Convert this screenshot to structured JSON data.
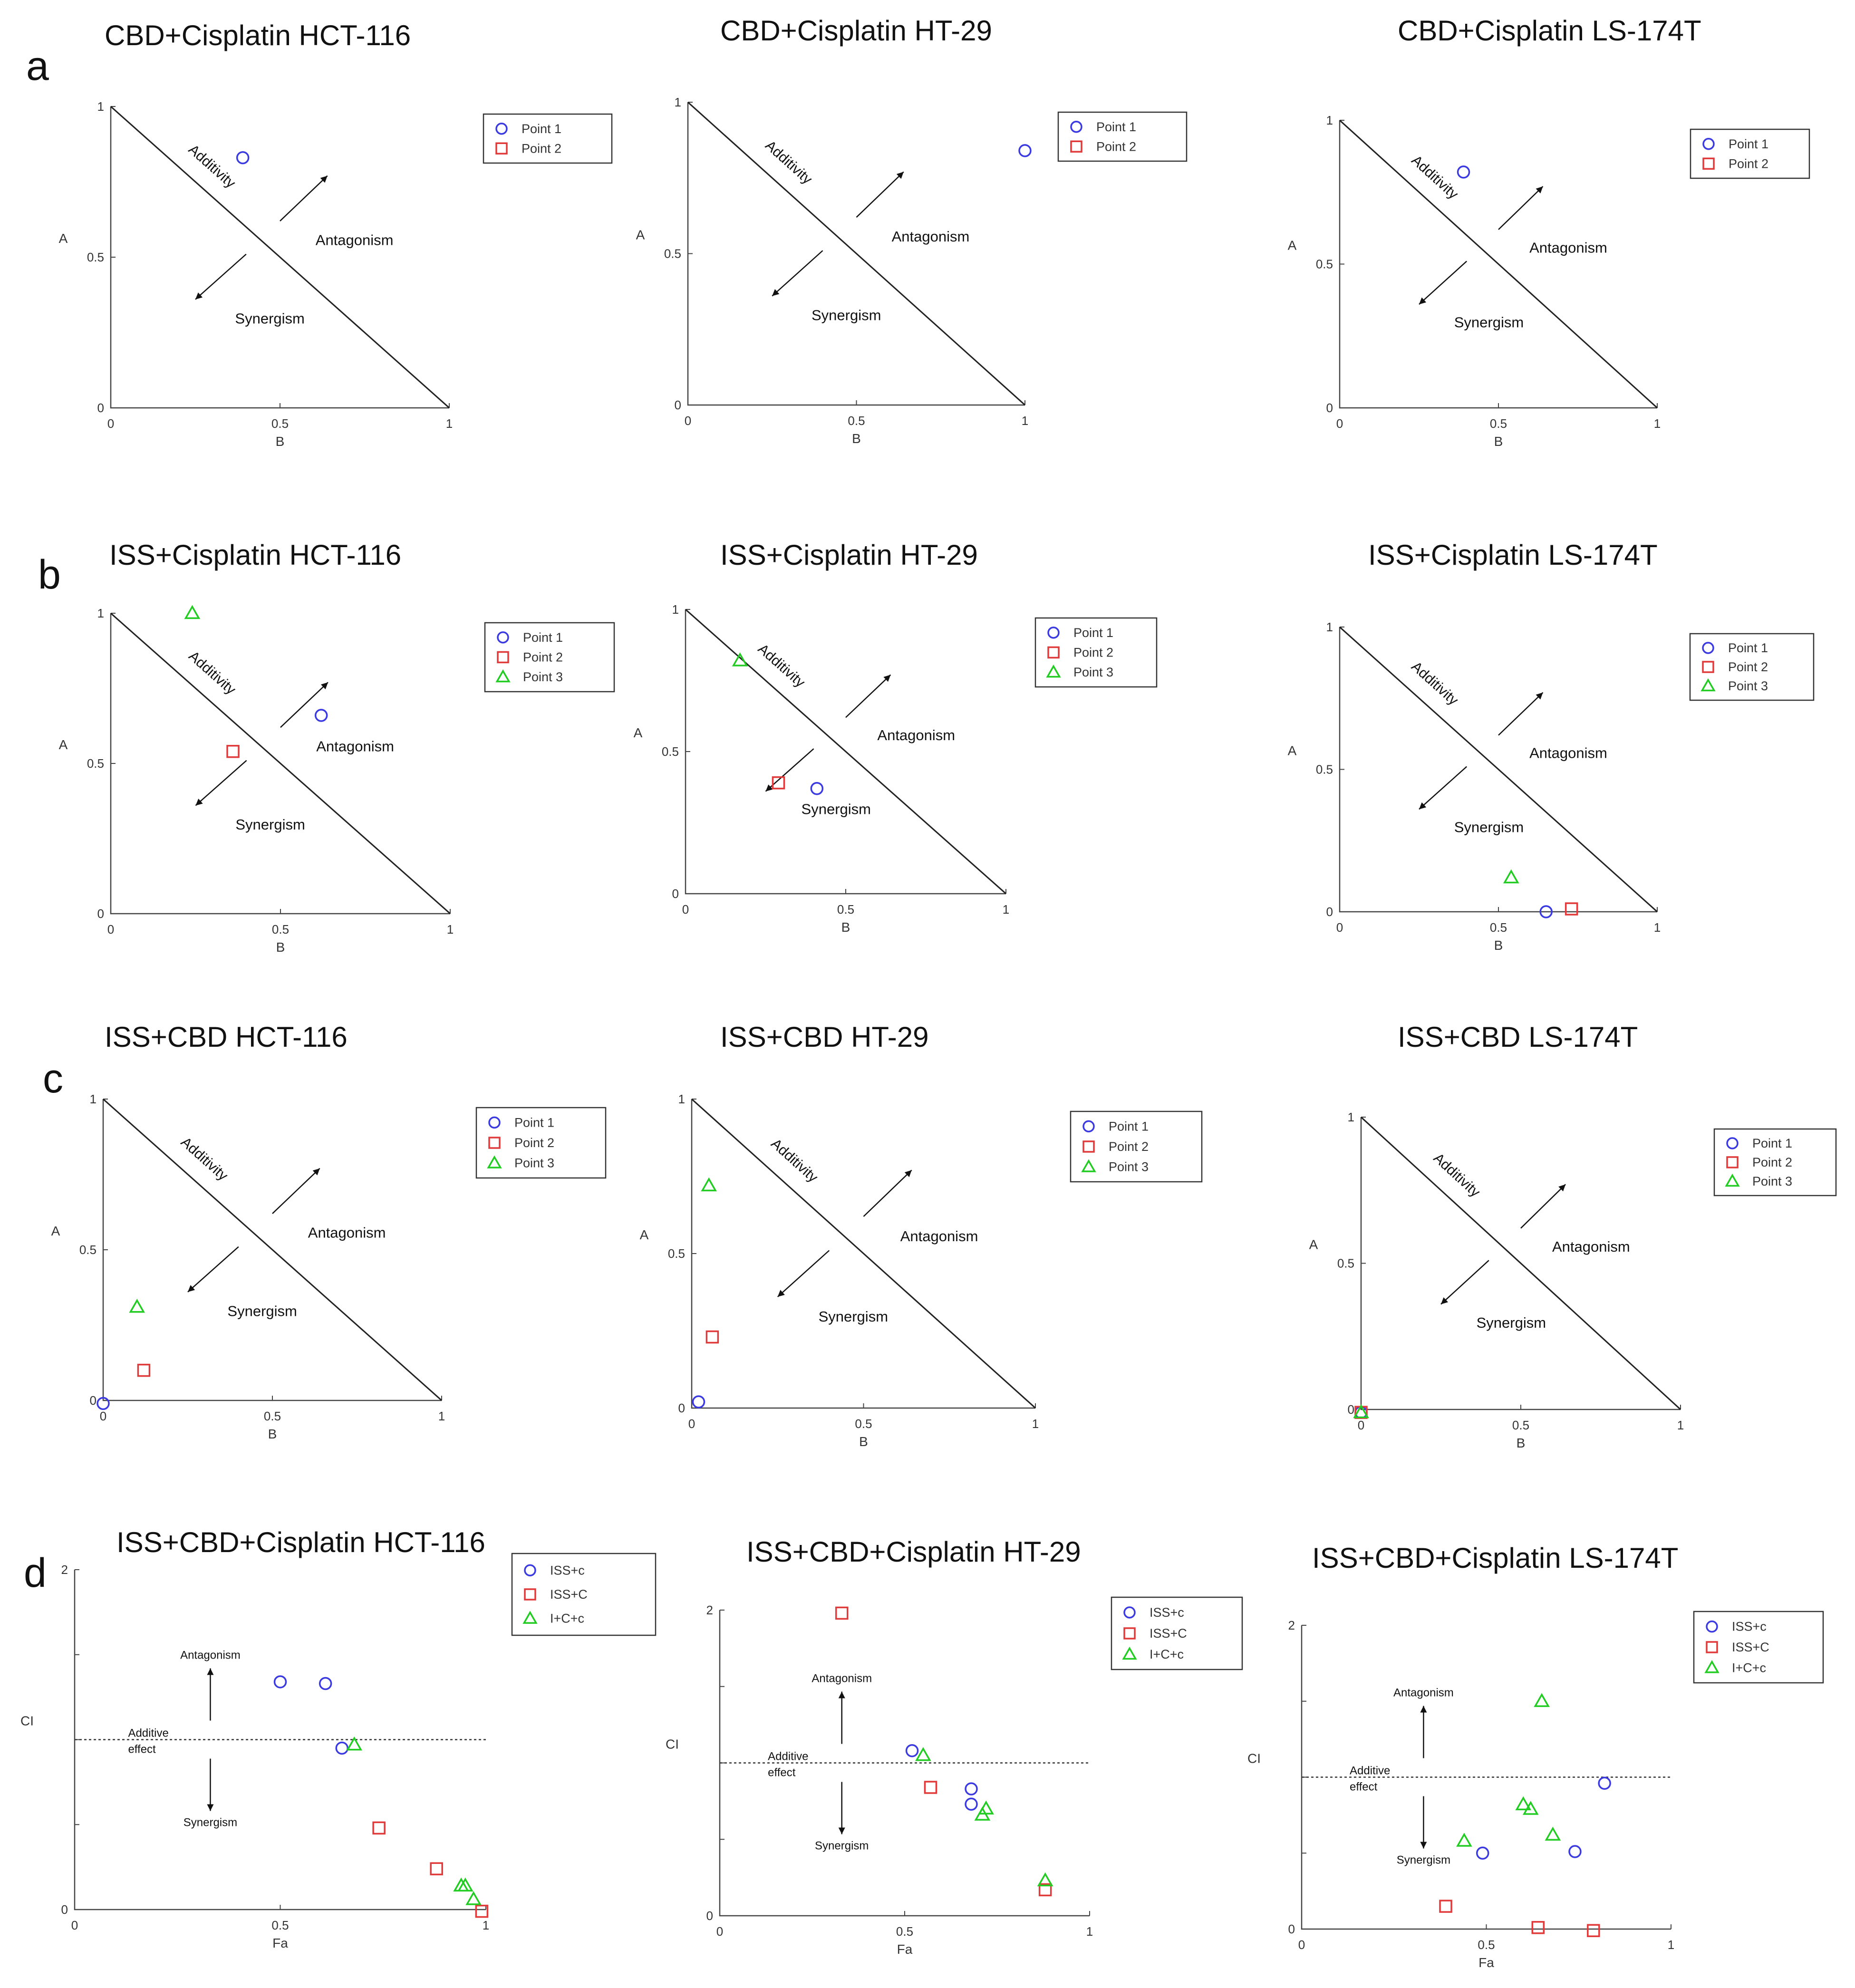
{
  "row_labels": [
    "a",
    "b",
    "c",
    "d"
  ],
  "chart_data": [
    {
      "id": "a1",
      "row": 0,
      "type": "isobologram",
      "title": "CBD+Cisplatin HCT-116",
      "xlabel": "B",
      "ylabel": "A",
      "xlim": [
        0,
        1
      ],
      "ylim": [
        0,
        1
      ],
      "xticks": [
        "0",
        "0.5",
        "1"
      ],
      "yticks": [
        "0",
        "0.5",
        "1"
      ],
      "regions": {
        "line": "Additivity",
        "above": "Antagonism",
        "below": "Synergism"
      },
      "series": [
        {
          "name": "Point 1",
          "marker": "circle",
          "color": "#3a3ae0",
          "points": [
            [
              0.39,
              0.83
            ]
          ]
        },
        {
          "name": "Point 2",
          "marker": "square",
          "color": "#e03a3a",
          "points": []
        }
      ]
    },
    {
      "id": "a2",
      "row": 0,
      "type": "isobologram",
      "title": "CBD+Cisplatin HT-29",
      "xlabel": "B",
      "ylabel": "A",
      "xlim": [
        0,
        1
      ],
      "ylim": [
        0,
        1
      ],
      "xticks": [
        "0",
        "0.5",
        "1"
      ],
      "yticks": [
        "0",
        "0.5",
        "1"
      ],
      "regions": {
        "line": "Additivity",
        "above": "Antagonism",
        "below": "Synergism"
      },
      "series": [
        {
          "name": "Point 1",
          "marker": "circle",
          "color": "#3a3ae0",
          "points": [
            [
              1.0,
              0.84
            ]
          ]
        },
        {
          "name": "Point 2",
          "marker": "square",
          "color": "#e03a3a",
          "points": []
        }
      ]
    },
    {
      "id": "a3",
      "row": 0,
      "type": "isobologram",
      "title": "CBD+Cisplatin LS-174T",
      "xlabel": "B",
      "ylabel": "A",
      "xlim": [
        0,
        1
      ],
      "ylim": [
        0,
        1
      ],
      "xticks": [
        "0",
        "0.5",
        "1"
      ],
      "yticks": [
        "0",
        "0.5",
        "1"
      ],
      "regions": {
        "line": "Additivity",
        "above": "Antagonism",
        "below": "Synergism"
      },
      "series": [
        {
          "name": "Point 1",
          "marker": "circle",
          "color": "#3a3ae0",
          "points": [
            [
              0.39,
              0.82
            ]
          ]
        },
        {
          "name": "Point 2",
          "marker": "square",
          "color": "#e03a3a",
          "points": []
        }
      ]
    },
    {
      "id": "b1",
      "row": 1,
      "type": "isobologram",
      "title": "ISS+Cisplatin HCT-116",
      "xlabel": "B",
      "ylabel": "A",
      "xlim": [
        0,
        1
      ],
      "ylim": [
        0,
        1
      ],
      "xticks": [
        "0",
        "0.5",
        "1"
      ],
      "yticks": [
        "0",
        "0.5",
        "1"
      ],
      "regions": {
        "line": "Additivity",
        "above": "Antagonism",
        "below": "Synergism"
      },
      "series": [
        {
          "name": "Point 1",
          "marker": "circle",
          "color": "#3a3ae0",
          "points": [
            [
              0.62,
              0.66
            ]
          ]
        },
        {
          "name": "Point 2",
          "marker": "square",
          "color": "#e03a3a",
          "points": [
            [
              0.36,
              0.54
            ]
          ]
        },
        {
          "name": "Point 3",
          "marker": "triangle",
          "color": "#22cc22",
          "points": [
            [
              0.24,
              1.0
            ]
          ]
        }
      ]
    },
    {
      "id": "b2",
      "row": 1,
      "type": "isobologram",
      "title": "ISS+Cisplatin HT-29",
      "xlabel": "B",
      "ylabel": "A",
      "xlim": [
        0,
        1
      ],
      "ylim": [
        0,
        1
      ],
      "xticks": [
        "0",
        "0.5",
        "1"
      ],
      "yticks": [
        "0",
        "0.5",
        "1"
      ],
      "regions": {
        "line": "Additivity",
        "above": "Antagonism",
        "below": "Synergism"
      },
      "series": [
        {
          "name": "Point 1",
          "marker": "circle",
          "color": "#3a3ae0",
          "points": [
            [
              0.41,
              0.37
            ]
          ]
        },
        {
          "name": "Point 2",
          "marker": "square",
          "color": "#e03a3a",
          "points": [
            [
              0.29,
              0.39
            ]
          ]
        },
        {
          "name": "Point 3",
          "marker": "triangle",
          "color": "#22cc22",
          "points": [
            [
              0.17,
              0.82
            ]
          ]
        }
      ]
    },
    {
      "id": "b3",
      "row": 1,
      "type": "isobologram",
      "title": "ISS+Cisplatin LS-174T",
      "xlabel": "B",
      "ylabel": "A",
      "xlim": [
        0,
        1
      ],
      "ylim": [
        0,
        1
      ],
      "xticks": [
        "0",
        "0.5",
        "1"
      ],
      "yticks": [
        "0",
        "0.5",
        "1"
      ],
      "regions": {
        "line": "Additivity",
        "above": "Antagonism",
        "below": "Synergism"
      },
      "series": [
        {
          "name": "Point 1",
          "marker": "circle",
          "color": "#3a3ae0",
          "points": [
            [
              0.65,
              0.0
            ]
          ]
        },
        {
          "name": "Point 2",
          "marker": "square",
          "color": "#e03a3a",
          "points": [
            [
              0.73,
              0.01
            ]
          ]
        },
        {
          "name": "Point 3",
          "marker": "triangle",
          "color": "#22cc22",
          "points": [
            [
              0.54,
              0.12
            ]
          ]
        }
      ]
    },
    {
      "id": "c1",
      "row": 2,
      "type": "isobologram",
      "title": "ISS+CBD HCT-116",
      "xlabel": "B",
      "ylabel": "A",
      "xlim": [
        0,
        1
      ],
      "ylim": [
        0,
        1
      ],
      "xticks": [
        "0",
        "0.5",
        "1"
      ],
      "yticks": [
        "0",
        "0.5",
        "1"
      ],
      "regions": {
        "line": "Additivity",
        "above": "Antagonism",
        "below": "Synergism"
      },
      "series": [
        {
          "name": "Point 1",
          "marker": "circle",
          "color": "#3a3ae0",
          "points": [
            [
              0.0,
              -0.01
            ]
          ]
        },
        {
          "name": "Point 2",
          "marker": "square",
          "color": "#e03a3a",
          "points": [
            [
              0.12,
              0.1
            ]
          ]
        },
        {
          "name": "Point 3",
          "marker": "triangle",
          "color": "#22cc22",
          "points": [
            [
              0.1,
              0.31
            ]
          ]
        }
      ]
    },
    {
      "id": "c2",
      "row": 2,
      "type": "isobologram",
      "title": "ISS+CBD HT-29",
      "xlabel": "B",
      "ylabel": "A",
      "xlim": [
        0,
        1
      ],
      "ylim": [
        0,
        1
      ],
      "xticks": [
        "0",
        "0.5",
        "1"
      ],
      "yticks": [
        "0",
        "0.5",
        "1"
      ],
      "regions": {
        "line": "Additivity",
        "above": "Antagonism",
        "below": "Synergism"
      },
      "series": [
        {
          "name": "Point 1",
          "marker": "circle",
          "color": "#3a3ae0",
          "points": [
            [
              0.02,
              0.02
            ]
          ]
        },
        {
          "name": "Point 2",
          "marker": "square",
          "color": "#e03a3a",
          "points": [
            [
              0.06,
              0.23
            ]
          ]
        },
        {
          "name": "Point 3",
          "marker": "triangle",
          "color": "#22cc22",
          "points": [
            [
              0.05,
              0.72
            ]
          ]
        }
      ]
    },
    {
      "id": "c3",
      "row": 2,
      "type": "isobologram",
      "title": "ISS+CBD LS-174T",
      "xlabel": "B",
      "ylabel": "A",
      "xlim": [
        0,
        1
      ],
      "ylim": [
        0,
        1
      ],
      "xticks": [
        "0",
        "0.5",
        "1"
      ],
      "yticks": [
        "0",
        "0.5",
        "1"
      ],
      "regions": {
        "line": "Additivity",
        "above": "Antagonism",
        "below": "Synergism"
      },
      "series": [
        {
          "name": "Point 1",
          "marker": "circle",
          "color": "#3a3ae0",
          "points": [
            [
              0.0,
              -0.01
            ]
          ]
        },
        {
          "name": "Point 2",
          "marker": "square",
          "color": "#e03a3a",
          "points": [
            [
              0.0,
              -0.01
            ]
          ]
        },
        {
          "name": "Point 3",
          "marker": "triangle",
          "color": "#22cc22",
          "points": [
            [
              0.0,
              -0.01
            ]
          ]
        }
      ]
    },
    {
      "id": "d1",
      "row": 3,
      "type": "scatter",
      "title": "ISS+CBD+Cisplatin HCT-116",
      "xlabel": "Fa",
      "ylabel": "CI",
      "xlim": [
        0,
        1
      ],
      "ylim": [
        0,
        2
      ],
      "xticks": [
        "0",
        "0.5",
        "1"
      ],
      "yticks": [
        "0",
        "",
        "",
        "",
        "2"
      ],
      "reference": {
        "y": 1,
        "label_line1": "Additive",
        "label_line2": "effect",
        "up": "Antagonism",
        "down": "Synergism"
      },
      "series": [
        {
          "name": "ISS+c",
          "marker": "circle",
          "color": "#3a3ae0",
          "points": [
            [
              0.5,
              1.34
            ],
            [
              0.61,
              1.33
            ],
            [
              0.65,
              0.95
            ]
          ]
        },
        {
          "name": "ISS+C",
          "marker": "square",
          "color": "#e03a3a",
          "points": [
            [
              0.74,
              0.48
            ],
            [
              0.88,
              0.24
            ],
            [
              0.99,
              -0.01
            ]
          ]
        },
        {
          "name": "I+C+c",
          "marker": "triangle",
          "color": "#22cc22",
          "points": [
            [
              0.68,
              0.97
            ],
            [
              0.94,
              0.14
            ],
            [
              0.95,
              0.14
            ],
            [
              0.97,
              0.06
            ]
          ]
        }
      ]
    },
    {
      "id": "d2",
      "row": 3,
      "type": "scatter",
      "title": "ISS+CBD+Cisplatin HT-29",
      "xlabel": "Fa",
      "ylabel": "CI",
      "xlim": [
        0,
        1
      ],
      "ylim": [
        0,
        2
      ],
      "xticks": [
        "0",
        "0.5",
        "1"
      ],
      "yticks": [
        "0",
        "",
        "",
        "",
        "2"
      ],
      "reference": {
        "y": 1,
        "label_line1": "Additive",
        "label_line2": "effect",
        "up": "Antagonism",
        "down": "Synergism"
      },
      "series": [
        {
          "name": "ISS+c",
          "marker": "circle",
          "color": "#3a3ae0",
          "points": [
            [
              0.52,
              1.08
            ],
            [
              0.68,
              0.83
            ],
            [
              0.68,
              0.73
            ]
          ]
        },
        {
          "name": "ISS+C",
          "marker": "square",
          "color": "#e03a3a",
          "points": [
            [
              0.33,
              1.98
            ],
            [
              0.57,
              0.84
            ],
            [
              0.88,
              0.17
            ]
          ]
        },
        {
          "name": "I+C+c",
          "marker": "triangle",
          "color": "#22cc22",
          "points": [
            [
              0.55,
              1.05
            ],
            [
              0.71,
              0.66
            ],
            [
              0.72,
              0.7
            ],
            [
              0.88,
              0.23
            ]
          ]
        }
      ]
    },
    {
      "id": "d3",
      "row": 3,
      "type": "scatter",
      "title": "ISS+CBD+Cisplatin LS-174T",
      "xlabel": "Fa",
      "ylabel": "CI",
      "xlim": [
        0,
        1
      ],
      "ylim": [
        0,
        2
      ],
      "xticks": [
        "0",
        "0.5",
        "1"
      ],
      "yticks": [
        "0",
        "",
        "",
        "",
        "2"
      ],
      "reference": {
        "y": 1,
        "label_line1": "Additive",
        "label_line2": "effect",
        "up": "Antagonism",
        "down": "Synergism"
      },
      "series": [
        {
          "name": "ISS+c",
          "marker": "circle",
          "color": "#3a3ae0",
          "points": [
            [
              0.49,
              0.5
            ],
            [
              0.74,
              0.51
            ],
            [
              0.82,
              0.96
            ]
          ]
        },
        {
          "name": "ISS+C",
          "marker": "square",
          "color": "#e03a3a",
          "points": [
            [
              0.39,
              0.15
            ],
            [
              0.64,
              0.01
            ],
            [
              0.79,
              -0.01
            ]
          ]
        },
        {
          "name": "I+C+c",
          "marker": "triangle",
          "color": "#22cc22",
          "points": [
            [
              0.44,
              0.58
            ],
            [
              0.6,
              0.82
            ],
            [
              0.62,
              0.79
            ],
            [
              0.65,
              1.5
            ],
            [
              0.68,
              0.62
            ]
          ]
        }
      ]
    }
  ]
}
